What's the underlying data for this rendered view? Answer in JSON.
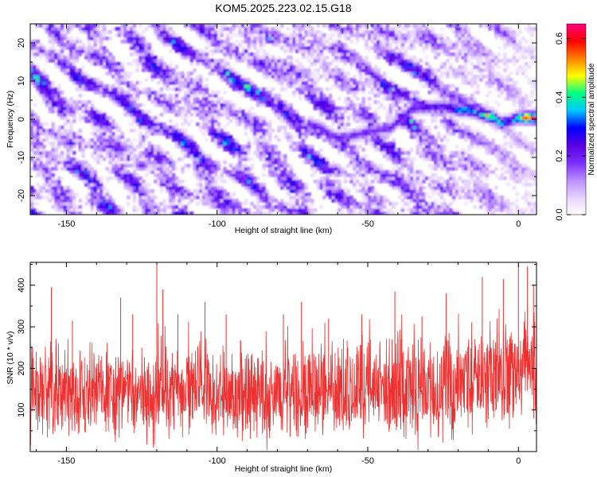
{
  "title": "KOM5.2025.223.02.15.G18",
  "colors": {
    "snr_line": "#ee3030",
    "frame": "#000000",
    "colormap": [
      "#ffffff",
      "#e6d2ff",
      "#b98cff",
      "#7a2cff",
      "#5a00e0",
      "#0000ff",
      "#00c8ff",
      "#00ff80",
      "#ffff00",
      "#ff8000",
      "#ff0000",
      "#ff0080"
    ]
  },
  "chart_data": [
    {
      "type": "heatmap",
      "title": "KOM5.2025.223.02.15.G18",
      "xlabel": "Height of straight line (km)",
      "ylabel": "Frequency (Hz)",
      "xlim": [
        -162,
        6
      ],
      "ylim": [
        -25,
        25
      ],
      "xticks": [
        -150,
        -100,
        -50,
        0
      ],
      "xtick_labels": [
        "-150",
        "-100",
        "-50",
        "0"
      ],
      "yticks": [
        -20,
        -10,
        0,
        10,
        20
      ],
      "ytick_labels": [
        "-20",
        "-10",
        "0",
        "10",
        "20"
      ],
      "colorbar": {
        "label": "Normalized spectral amplitude",
        "range": [
          0.0,
          0.65
        ],
        "ticks": [
          0.0,
          0.2,
          0.4,
          0.6
        ],
        "tick_labels": [
          "0.0",
          "0.2",
          "0.4",
          "0.6"
        ]
      },
      "background_noise_level": 0.12,
      "signal_track": {
        "description": "strong narrow-band signal near 0-3 Hz, weakening toward -70 km",
        "points": [
          {
            "height_km": -70,
            "freq_hz": -1.0,
            "amp": 0.24
          },
          {
            "height_km": -66,
            "freq_hz": -2.0,
            "amp": 0.22
          },
          {
            "height_km": -60,
            "freq_hz": -5.0,
            "amp": 0.2
          },
          {
            "height_km": -42,
            "freq_hz": -2.0,
            "amp": 0.22
          },
          {
            "height_km": -35,
            "freq_hz": 3.0,
            "amp": 0.24
          },
          {
            "height_km": -25,
            "freq_hz": 3.5,
            "amp": 0.25
          },
          {
            "height_km": -20,
            "freq_hz": 2.5,
            "amp": 0.35
          },
          {
            "height_km": -17,
            "freq_hz": 2.5,
            "amp": 0.38
          },
          {
            "height_km": -13,
            "freq_hz": 1.5,
            "amp": 0.34
          },
          {
            "height_km": -10,
            "freq_hz": 1.0,
            "amp": 0.5
          },
          {
            "height_km": -8,
            "freq_hz": 0.5,
            "amp": 0.42
          },
          {
            "height_km": -6,
            "freq_hz": -1.0,
            "amp": 0.4
          },
          {
            "height_km": -3,
            "freq_hz": -0.5,
            "amp": 0.3
          },
          {
            "height_km": 0,
            "freq_hz": 0.5,
            "amp": 0.45
          },
          {
            "height_km": 2,
            "freq_hz": 0.5,
            "amp": 0.62
          },
          {
            "height_km": 4,
            "freq_hz": 0.5,
            "amp": 0.58
          }
        ],
        "isolated_blobs": [
          {
            "height_km": -125,
            "freq_hz": -12,
            "amp": 0.22
          }
        ]
      }
    },
    {
      "type": "line",
      "xlabel": "Height of straight line (km)",
      "ylabel": "SNR (10 * v/v)",
      "xlim": [
        -162,
        6
      ],
      "ylim": [
        0,
        455
      ],
      "xticks": [
        -150,
        -100,
        -50,
        0
      ],
      "xtick_labels": [
        "-150",
        "-100",
        "-50",
        "0"
      ],
      "yticks": [
        100,
        200,
        300,
        400
      ],
      "ytick_labels": [
        "100",
        "200",
        "300",
        "400"
      ],
      "series": [
        {
          "name": "SNR",
          "description": "dense noisy trace; rolling mean rises toward the right",
          "n_samples": 1680,
          "trend_x": [
            -162,
            -120,
            -80,
            -40,
            -20,
            0,
            6
          ],
          "trend_mean": [
            140,
            140,
            140,
            150,
            160,
            190,
            200
          ],
          "trend_halfwidth": [
            85,
            85,
            85,
            95,
            100,
            110,
            110
          ],
          "peaks": [
            {
              "x": -160,
              "y": 240
            },
            {
              "x": -155,
              "y": 395
            },
            {
              "x": -148,
              "y": 315
            },
            {
              "x": -132,
              "y": 370
            },
            {
              "x": -128,
              "y": 330
            },
            {
              "x": -120,
              "y": 455
            },
            {
              "x": -118,
              "y": 390
            },
            {
              "x": -113,
              "y": 330
            },
            {
              "x": -104,
              "y": 360
            },
            {
              "x": -97,
              "y": 330
            },
            {
              "x": -78,
              "y": 330
            },
            {
              "x": -72,
              "y": 360
            },
            {
              "x": -63,
              "y": 320
            },
            {
              "x": -52,
              "y": 330
            },
            {
              "x": -41,
              "y": 385
            },
            {
              "x": -32,
              "y": 325
            },
            {
              "x": -24,
              "y": 380
            },
            {
              "x": -12,
              "y": 420
            },
            {
              "x": -5,
              "y": 415
            },
            {
              "x": 0,
              "y": 450
            },
            {
              "x": 3,
              "y": 445
            },
            {
              "x": 5,
              "y": 400
            }
          ]
        }
      ]
    }
  ]
}
